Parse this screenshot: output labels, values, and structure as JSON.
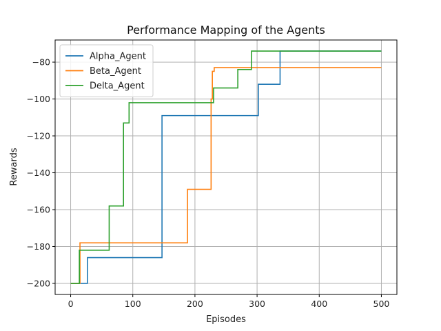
{
  "chart_data": {
    "type": "line",
    "title": "Performance Mapping of the Agents",
    "xlabel": "Episodes",
    "ylabel": "Rewards",
    "xlim": [
      -25,
      525
    ],
    "ylim": [
      -206,
      -68
    ],
    "xticks": [
      0,
      100,
      200,
      300,
      400,
      500
    ],
    "yticks": [
      -200,
      -180,
      -160,
      -140,
      -120,
      -100,
      -80
    ],
    "grid": true,
    "legend_position": "top-left",
    "series": [
      {
        "name": "Alpha_Agent",
        "color": "#1f77b4",
        "x": [
          0,
          27,
          27,
          147,
          147,
          302,
          302,
          337,
          337,
          500
        ],
        "y": [
          -200,
          -200,
          -186,
          -186,
          -109,
          -109,
          -92,
          -92,
          -74,
          -74
        ]
      },
      {
        "name": "Beta_Agent",
        "color": "#ff7f0e",
        "x": [
          0,
          15,
          15,
          188,
          188,
          226,
          226,
          228,
          228,
          231,
          231,
          500
        ],
        "y": [
          -200,
          -200,
          -178,
          -178,
          -149,
          -149,
          -100,
          -100,
          -85,
          -85,
          -83,
          -83
        ]
      },
      {
        "name": "Delta_Agent",
        "color": "#2ca02c",
        "x": [
          0,
          14,
          14,
          62,
          62,
          85,
          85,
          94,
          94,
          230,
          230,
          269,
          269,
          291,
          291,
          500
        ],
        "y": [
          -200,
          -200,
          -182,
          -182,
          -158,
          -158,
          -113,
          -113,
          -102,
          -102,
          -94,
          -94,
          -84,
          -84,
          -74,
          -74
        ]
      }
    ]
  }
}
